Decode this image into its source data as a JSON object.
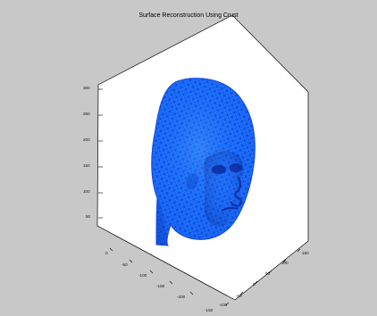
{
  "figure": {
    "title": "Surface Reconstruction Using Crust",
    "background": "#c8c8c8",
    "axes_background": "#ffffff",
    "mesh_color": "#1f7cff",
    "mesh_line_color": "#0a2fd6",
    "shadow_color": "#0b2a9b"
  },
  "chart_data": {
    "type": "other",
    "title": "Surface Reconstruction Using Crust",
    "axes": {
      "z_ticks": [
        "300",
        "250",
        "200",
        "150",
        "100",
        "50"
      ],
      "x_ticks": [
        "0",
        "-50",
        "-100",
        "-150",
        "-200"
      ],
      "y_ticks": [
        "150",
        "100",
        "50",
        "0",
        "-50",
        "-100",
        "-150"
      ]
    }
  }
}
